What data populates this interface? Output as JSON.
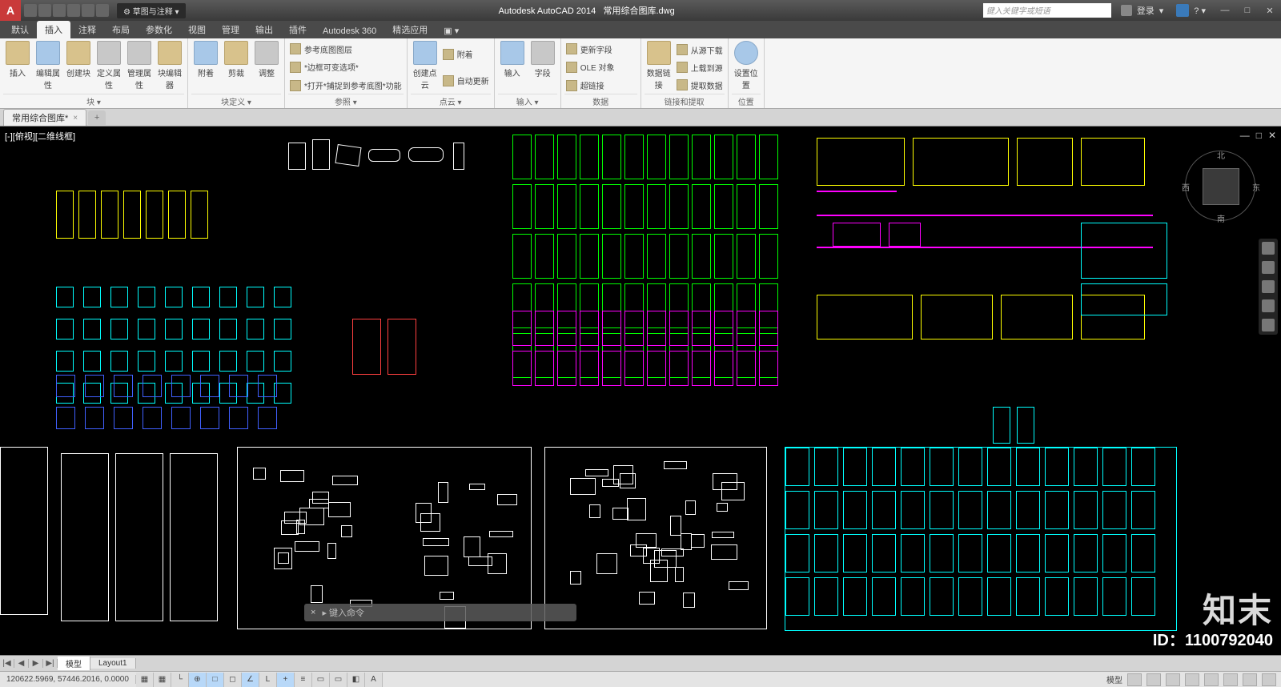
{
  "app": {
    "name": "Autodesk AutoCAD 2014",
    "document": "常用综合图库.dwg"
  },
  "titlebar": {
    "workspace": "草图与注释",
    "search_placeholder": "键入关键字或短语",
    "login": "登录",
    "win": {
      "min": "—",
      "max": "□",
      "close": "✕"
    }
  },
  "ribbon_tabs": [
    "默认",
    "插入",
    "注释",
    "布局",
    "参数化",
    "视图",
    "管理",
    "输出",
    "插件",
    "Autodesk 360",
    "精选应用"
  ],
  "ribbon_active": 1,
  "ribbon_panels": [
    {
      "label": "块 ▾",
      "big": [
        "插入",
        "编辑属性",
        "创建块",
        "定义属性",
        "管理属性",
        "块编辑器"
      ]
    },
    {
      "label": "块定义 ▾",
      "big": [
        "附着",
        "剪裁",
        "调整"
      ]
    },
    {
      "label": "参照 ▾",
      "rows": [
        "参考底图图层",
        "*边框可变选项*",
        "*打开*捕捉到参考底图*功能"
      ]
    },
    {
      "label": "点云 ▾",
      "big": [
        "创建点云"
      ],
      "rows": [
        "附着",
        "自动更新"
      ]
    },
    {
      "label": "输入 ▾",
      "big": [
        "输入",
        "字段"
      ]
    },
    {
      "label": "数据",
      "rows": [
        "更新字段",
        "OLE 对象",
        "超链接"
      ]
    },
    {
      "label": "链接和提取",
      "big": [
        "数据链接"
      ],
      "rows": [
        "从源下载",
        "上载到源",
        "提取数据"
      ]
    },
    {
      "label": "位置",
      "big": [
        "设置位置"
      ]
    }
  ],
  "file_tab": {
    "name": "常用综合图库*",
    "close": "×"
  },
  "viewport": {
    "label": "[-][俯视][二维线框]",
    "controls": [
      "—",
      "□",
      "✕"
    ]
  },
  "viewcube": {
    "n": "北",
    "s": "南",
    "e": "东",
    "w": "西"
  },
  "cad_colors": {
    "white": "#ffffff",
    "green": "#00ff00",
    "cyan": "#00ffff",
    "magenta": "#ff00ff",
    "yellow": "#ffff00",
    "blue": "#4060ff",
    "red": "#ff4040",
    "background": "#000000"
  },
  "layout_tabs": {
    "nav": [
      "|◀",
      "◀",
      "▶",
      "▶|"
    ],
    "tabs": [
      "模型",
      "Layout1"
    ],
    "active": 0
  },
  "command": {
    "close": "×",
    "prompt": "▸ 键入命令"
  },
  "status": {
    "coords": "120622.5969, 57446.2016, 0.0000",
    "right_label": "模型"
  },
  "watermark": {
    "brand": "知末",
    "id": "ID：1100792040"
  }
}
